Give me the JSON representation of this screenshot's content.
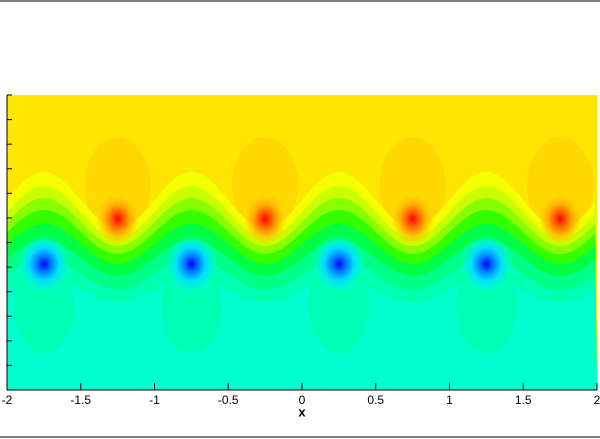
{
  "chart_data": {
    "type": "contour",
    "xlabel": "x",
    "xlim": [
      -2,
      2
    ],
    "xticks": [
      -2,
      -1.5,
      -1,
      -0.5,
      0,
      0.5,
      1,
      1.5,
      2
    ]
  }
}
